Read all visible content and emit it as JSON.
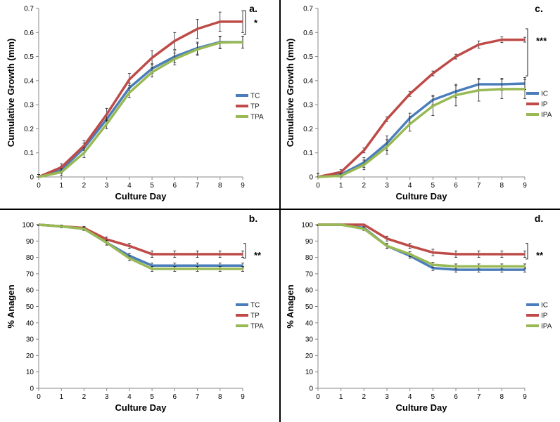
{
  "colors": {
    "blue": "#4a7ebb",
    "red": "#be4b48",
    "green": "#98b954",
    "divider": "#000000"
  },
  "chart_data": [
    {
      "type": "line",
      "panel": "a.",
      "significance": "*",
      "xlabel": "Culture Day",
      "ylabel": "Cumulative Growth (mm)",
      "x": [
        0,
        1,
        2,
        3,
        4,
        5,
        6,
        7,
        8,
        9
      ],
      "xticks": [
        "0",
        "1",
        "2",
        "3",
        "4",
        "5",
        "6",
        "7",
        "8",
        "9"
      ],
      "ylim": [
        0,
        0.7
      ],
      "yticks": [
        "0",
        "0.1",
        "0.2",
        "0.3",
        "0.4",
        "0.5",
        "0.6",
        "0.7"
      ],
      "legend_position": "right",
      "series": [
        {
          "name": "TC",
          "color": "blue",
          "values": [
            0,
            0.03,
            0.12,
            0.24,
            0.37,
            0.45,
            0.5,
            0.535,
            0.56,
            0.56
          ],
          "errors": [
            0.01,
            0.015,
            0.02,
            0.02,
            0.02,
            0.02,
            0.025,
            0.025,
            0.025,
            0.025
          ]
        },
        {
          "name": "TP",
          "color": "red",
          "values": [
            0,
            0.04,
            0.13,
            0.26,
            0.405,
            0.495,
            0.565,
            0.615,
            0.645,
            0.645
          ],
          "errors": [
            0.01,
            0.015,
            0.02,
            0.025,
            0.025,
            0.03,
            0.035,
            0.04,
            0.04,
            0.045
          ]
        },
        {
          "name": "TPA",
          "color": "green",
          "values": [
            0,
            0.02,
            0.1,
            0.22,
            0.35,
            0.435,
            0.49,
            0.53,
            0.558,
            0.56
          ],
          "errors": [
            0.01,
            0.015,
            0.02,
            0.02,
            0.02,
            0.02,
            0.025,
            0.025,
            0.025,
            0.025
          ]
        }
      ]
    },
    {
      "type": "line",
      "panel": "c.",
      "significance": "***",
      "xlabel": "Culture Day",
      "ylabel": "Cumulative Growth (mm)",
      "x": [
        0,
        1,
        2,
        3,
        4,
        5,
        6,
        7,
        8,
        9
      ],
      "xticks": [
        "0",
        "1",
        "2",
        "3",
        "4",
        "5",
        "6",
        "7",
        "8",
        "9"
      ],
      "ylim": [
        0,
        0.7
      ],
      "yticks": [
        "0",
        "0.1",
        "0.2",
        "0.3",
        "0.4",
        "0.5",
        "0.6",
        "0.7"
      ],
      "legend_position": "right",
      "series": [
        {
          "name": "IC",
          "color": "blue",
          "values": [
            0,
            0.01,
            0.06,
            0.14,
            0.245,
            0.32,
            0.355,
            0.385,
            0.385,
            0.388
          ],
          "errors": [
            0.015,
            0.01,
            0.02,
            0.03,
            0.02,
            0.02,
            0.025,
            0.025,
            0.025,
            0.025
          ]
        },
        {
          "name": "IP",
          "color": "red",
          "values": [
            0,
            0.02,
            0.11,
            0.24,
            0.345,
            0.43,
            0.5,
            0.55,
            0.57,
            0.57
          ],
          "errors": [
            0.015,
            0.01,
            0.01,
            0.01,
            0.01,
            0.01,
            0.01,
            0.015,
            0.012,
            0.01
          ]
        },
        {
          "name": "IPA",
          "color": "green",
          "values": [
            0,
            0.005,
            0.05,
            0.125,
            0.22,
            0.295,
            0.34,
            0.36,
            0.365,
            0.365
          ],
          "errors": [
            0.015,
            0.01,
            0.02,
            0.03,
            0.03,
            0.04,
            0.045,
            0.045,
            0.04,
            0.04
          ]
        }
      ]
    },
    {
      "type": "line",
      "panel": "b.",
      "significance": "**",
      "xlabel": "Culture Day",
      "ylabel": "% Anagen",
      "x": [
        0,
        1,
        2,
        3,
        4,
        5,
        6,
        7,
        8,
        9
      ],
      "xticks": [
        "0",
        "1",
        "2",
        "3",
        "4",
        "5",
        "6",
        "7",
        "8",
        "9"
      ],
      "ylim": [
        0,
        100
      ],
      "yticks": [
        "0",
        "10",
        "20",
        "30",
        "40",
        "50",
        "60",
        "70",
        "80",
        "90",
        "100"
      ],
      "legend_position": "right",
      "series": [
        {
          "name": "TC",
          "color": "blue",
          "values": [
            100,
            99,
            97.5,
            89,
            81,
            75,
            75,
            75,
            75,
            75
          ],
          "errors": [
            0.5,
            0.8,
            1,
            1.5,
            1.5,
            1.5,
            1.5,
            1.5,
            1.5,
            1.5
          ]
        },
        {
          "name": "TP",
          "color": "red",
          "values": [
            100,
            99,
            98,
            91,
            87,
            82,
            82,
            82,
            82,
            82
          ],
          "errors": [
            0.5,
            0.8,
            1,
            1.5,
            1.5,
            2,
            2,
            2,
            2,
            2
          ]
        },
        {
          "name": "TPA",
          "color": "green",
          "values": [
            100,
            99,
            97.5,
            89,
            79.5,
            73,
            73,
            73,
            73,
            73
          ],
          "errors": [
            0.5,
            0.8,
            1,
            1.5,
            1.5,
            1.5,
            1.5,
            1.5,
            1.5,
            1.5
          ]
        }
      ]
    },
    {
      "type": "line",
      "panel": "d.",
      "significance": "**",
      "xlabel": "Culture Day",
      "ylabel": "% Anagen",
      "x": [
        0,
        1,
        2,
        3,
        4,
        5,
        6,
        7,
        8,
        9
      ],
      "xticks": [
        "0",
        "1",
        "2",
        "3",
        "4",
        "5",
        "6",
        "7",
        "8",
        "9"
      ],
      "ylim": [
        0,
        100
      ],
      "yticks": [
        "0",
        "10",
        "20",
        "30",
        "40",
        "50",
        "60",
        "70",
        "80",
        "90",
        "100"
      ],
      "legend_position": "right",
      "series": [
        {
          "name": "IC",
          "color": "blue",
          "values": [
            100,
            100,
            98,
            87,
            81,
            73.5,
            72.5,
            72.5,
            72.5,
            72.5
          ],
          "errors": [
            0.5,
            0.5,
            1,
            1.5,
            1.5,
            1.5,
            1.5,
            1.5,
            1.5,
            1.5
          ]
        },
        {
          "name": "IP",
          "color": "red",
          "values": [
            100,
            100,
            100,
            91.5,
            87,
            83,
            82,
            82,
            82,
            82
          ],
          "errors": [
            0.5,
            0.5,
            0.5,
            1.5,
            1.5,
            2,
            2,
            2,
            2,
            2
          ]
        },
        {
          "name": "IPA",
          "color": "green",
          "values": [
            100,
            100,
            97.5,
            87,
            82,
            75.5,
            74.5,
            74.5,
            74.5,
            74.5
          ],
          "errors": [
            0.5,
            0.5,
            1,
            1.5,
            1.5,
            1.5,
            1.5,
            1.5,
            1.5,
            1.5
          ]
        }
      ]
    }
  ]
}
